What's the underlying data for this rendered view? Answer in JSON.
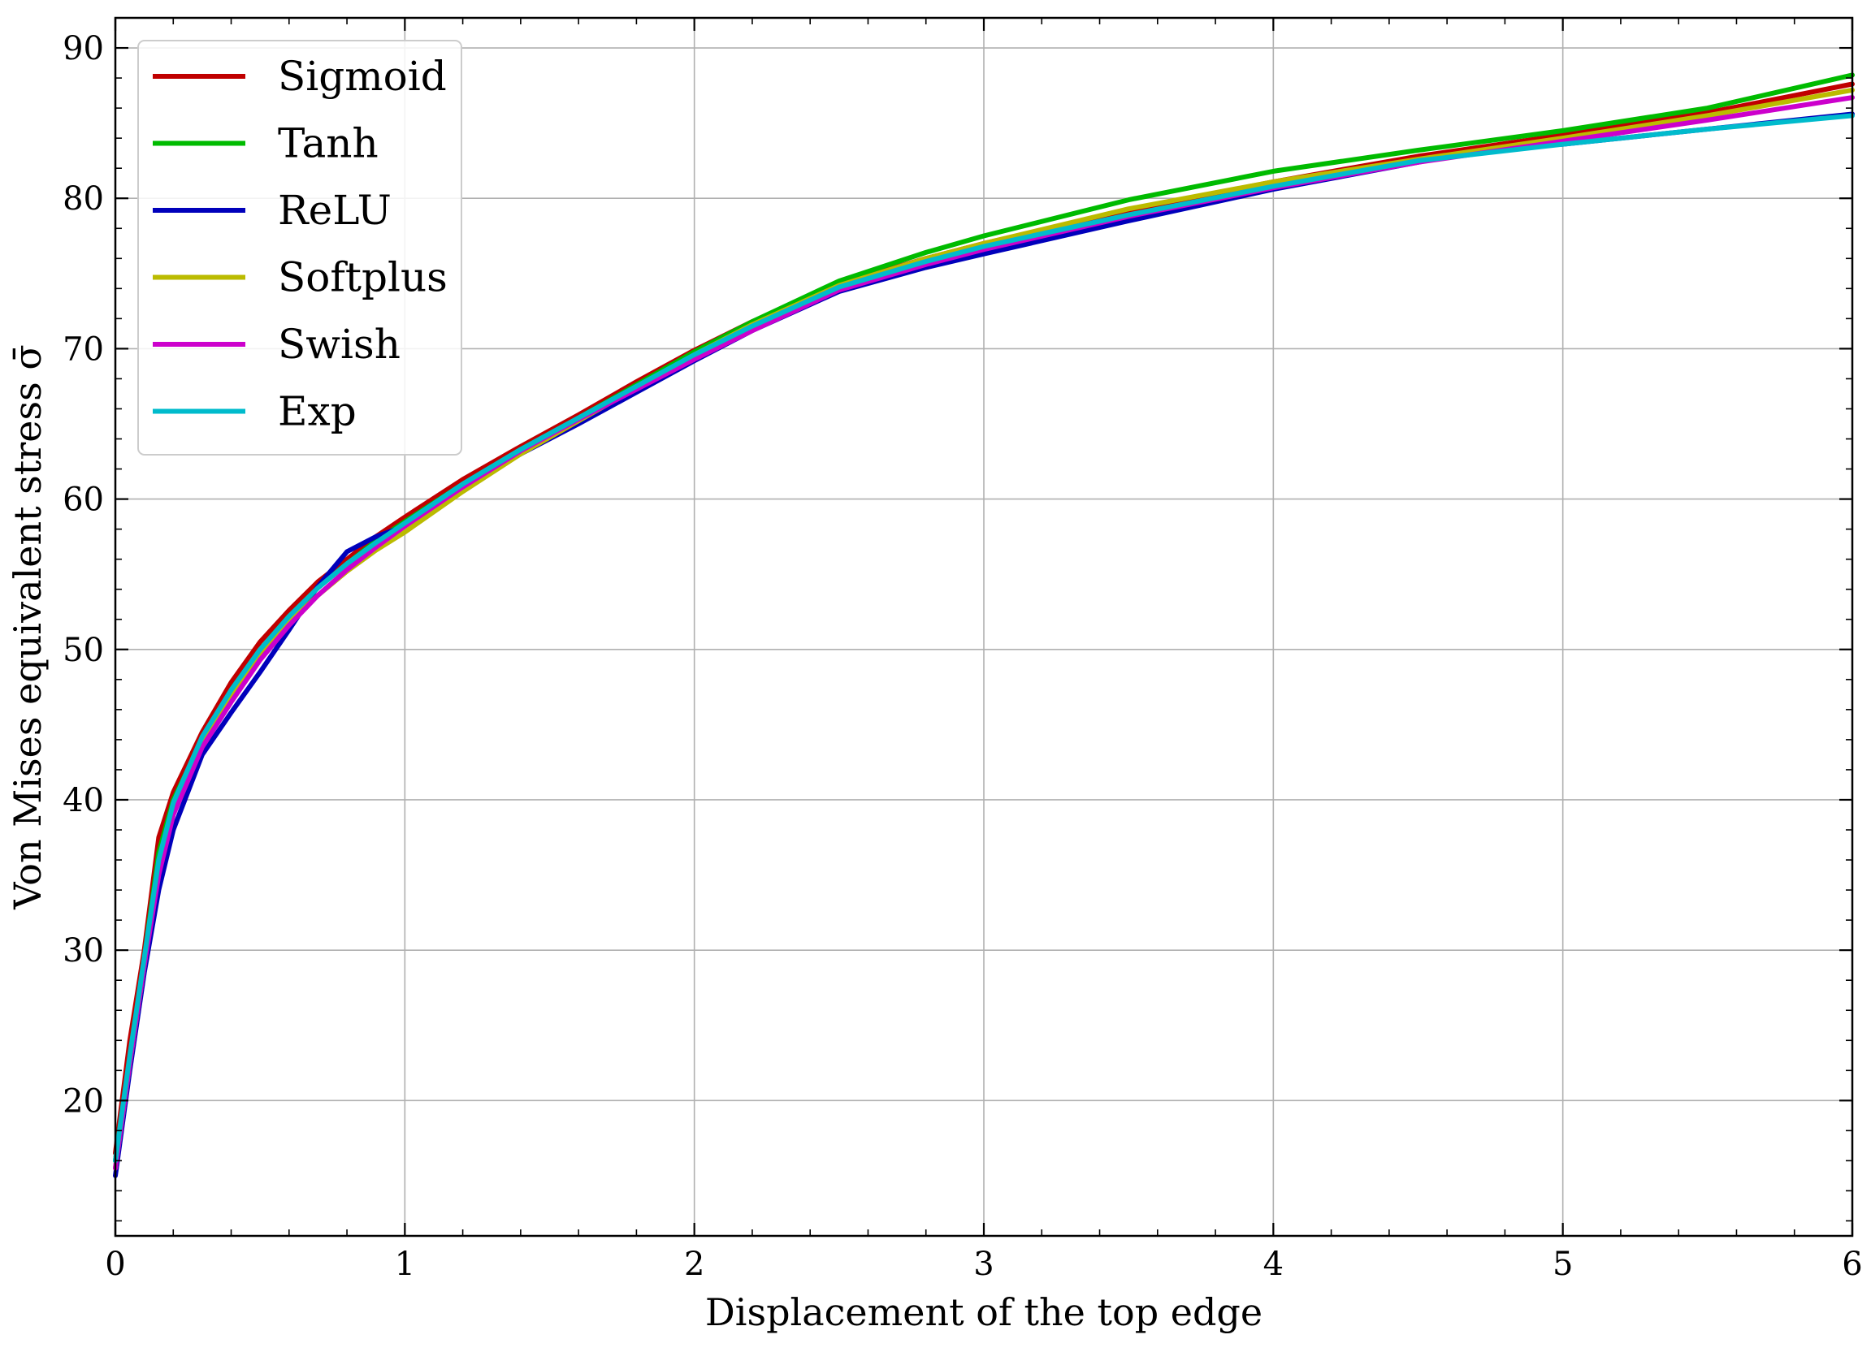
{
  "chart_data": {
    "type": "line",
    "title": "",
    "xlabel": "Displacement of the top edge",
    "ylabel": "Von Mises equivalent stress σ̄",
    "xlim": [
      0,
      6
    ],
    "ylim": [
      11,
      92
    ],
    "xticks": [
      0,
      1,
      2,
      3,
      4,
      5,
      6
    ],
    "yticks": [
      20,
      30,
      40,
      50,
      60,
      70,
      80,
      90
    ],
    "grid": true,
    "legend_position": "top-left",
    "series": [
      {
        "name": "Sigmoid",
        "color": "#c00000",
        "x": [
          0,
          0.05,
          0.1,
          0.15,
          0.2,
          0.3,
          0.4,
          0.5,
          0.6,
          0.7,
          0.8,
          0.9,
          1.0,
          1.2,
          1.4,
          1.6,
          1.8,
          2.0,
          2.2,
          2.5,
          2.8,
          3.0,
          3.5,
          4.0,
          4.5,
          5.0,
          5.5,
          6.0
        ],
        "y": [
          16.5,
          24.0,
          30.0,
          37.5,
          40.5,
          44.5,
          47.8,
          50.5,
          52.6,
          54.5,
          56.0,
          57.5,
          58.8,
          61.3,
          63.5,
          65.6,
          67.8,
          69.9,
          71.8,
          74.3,
          76.0,
          77.0,
          79.2,
          81.1,
          82.8,
          84.2,
          85.7,
          87.6
        ]
      },
      {
        "name": "Tanh",
        "color": "#00bb00",
        "x": [
          0,
          0.05,
          0.1,
          0.15,
          0.2,
          0.3,
          0.4,
          0.5,
          0.6,
          0.7,
          0.8,
          0.9,
          1.0,
          1.2,
          1.4,
          1.6,
          1.8,
          2.0,
          2.2,
          2.5,
          2.8,
          3.0,
          3.5,
          4.0,
          4.5,
          5.0,
          5.5,
          6.0
        ],
        "y": [
          16.0,
          23.0,
          29.5,
          36.5,
          40.0,
          44.0,
          47.3,
          50.0,
          52.2,
          54.1,
          55.7,
          57.2,
          58.5,
          61.0,
          63.3,
          65.4,
          67.6,
          69.8,
          71.8,
          74.5,
          76.4,
          77.5,
          79.9,
          81.8,
          83.2,
          84.5,
          86.0,
          88.2
        ]
      },
      {
        "name": "ReLU",
        "color": "#0000bb",
        "x": [
          0,
          0.05,
          0.1,
          0.15,
          0.2,
          0.3,
          0.4,
          0.5,
          0.6,
          0.7,
          0.8,
          0.9,
          1.0,
          1.2,
          1.4,
          1.6,
          1.8,
          2.0,
          2.2,
          2.5,
          2.8,
          3.0,
          3.5,
          4.0,
          4.5,
          4.75,
          5.0,
          5.5,
          6.0
        ],
        "y": [
          15.0,
          22.0,
          28.5,
          34.0,
          38.0,
          43.0,
          45.8,
          48.5,
          51.3,
          54.2,
          56.5,
          57.5,
          58.2,
          60.8,
          63.0,
          65.0,
          67.1,
          69.2,
          71.2,
          73.8,
          75.4,
          76.3,
          78.5,
          80.6,
          82.4,
          83.3,
          83.6,
          84.6,
          85.6
        ]
      },
      {
        "name": "Softplus",
        "color": "#bbbb00",
        "x": [
          0,
          0.05,
          0.1,
          0.15,
          0.2,
          0.3,
          0.4,
          0.5,
          0.6,
          0.7,
          0.8,
          0.9,
          1.0,
          1.2,
          1.4,
          1.6,
          1.8,
          2.0,
          2.2,
          2.5,
          2.8,
          3.0,
          3.5,
          4.0,
          4.5,
          5.0,
          5.5,
          6.0
        ],
        "y": [
          15.5,
          22.5,
          29.0,
          35.5,
          39.5,
          43.8,
          47.0,
          49.7,
          51.8,
          53.6,
          55.2,
          56.6,
          57.8,
          60.5,
          63.0,
          65.2,
          67.4,
          69.6,
          71.6,
          74.2,
          76.0,
          77.0,
          79.3,
          81.1,
          82.6,
          84.0,
          85.5,
          87.2
        ]
      },
      {
        "name": "Swish",
        "color": "#cc00cc",
        "x": [
          0,
          0.05,
          0.1,
          0.15,
          0.2,
          0.3,
          0.4,
          0.5,
          0.6,
          0.7,
          0.8,
          0.9,
          1.0,
          1.2,
          1.4,
          1.6,
          1.8,
          2.0,
          2.2,
          2.5,
          2.8,
          3.0,
          3.5,
          4.0,
          4.5,
          5.0,
          5.5,
          6.0
        ],
        "y": [
          15.5,
          22.5,
          29.0,
          35.0,
          39.0,
          43.5,
          46.5,
          49.3,
          51.6,
          53.6,
          55.3,
          56.8,
          58.2,
          60.8,
          63.2,
          65.3,
          67.3,
          69.3,
          71.2,
          73.9,
          75.6,
          76.6,
          78.8,
          80.7,
          82.4,
          83.8,
          85.2,
          86.7
        ]
      },
      {
        "name": "Exp",
        "color": "#00bbcc",
        "x": [
          0,
          0.05,
          0.1,
          0.15,
          0.2,
          0.3,
          0.4,
          0.5,
          0.6,
          0.7,
          0.8,
          0.9,
          1.0,
          1.2,
          1.4,
          1.6,
          1.8,
          2.0,
          2.2,
          2.5,
          2.8,
          3.0,
          3.5,
          4.0,
          4.5,
          5.0,
          5.5,
          6.0
        ],
        "y": [
          16.0,
          23.0,
          29.5,
          36.0,
          39.8,
          44.2,
          47.3,
          50.0,
          52.2,
          54.1,
          55.7,
          57.1,
          58.4,
          61.0,
          63.3,
          65.4,
          67.5,
          69.6,
          71.5,
          74.1,
          75.8,
          76.8,
          78.9,
          80.8,
          82.5,
          83.6,
          84.6,
          85.5
        ]
      }
    ]
  }
}
